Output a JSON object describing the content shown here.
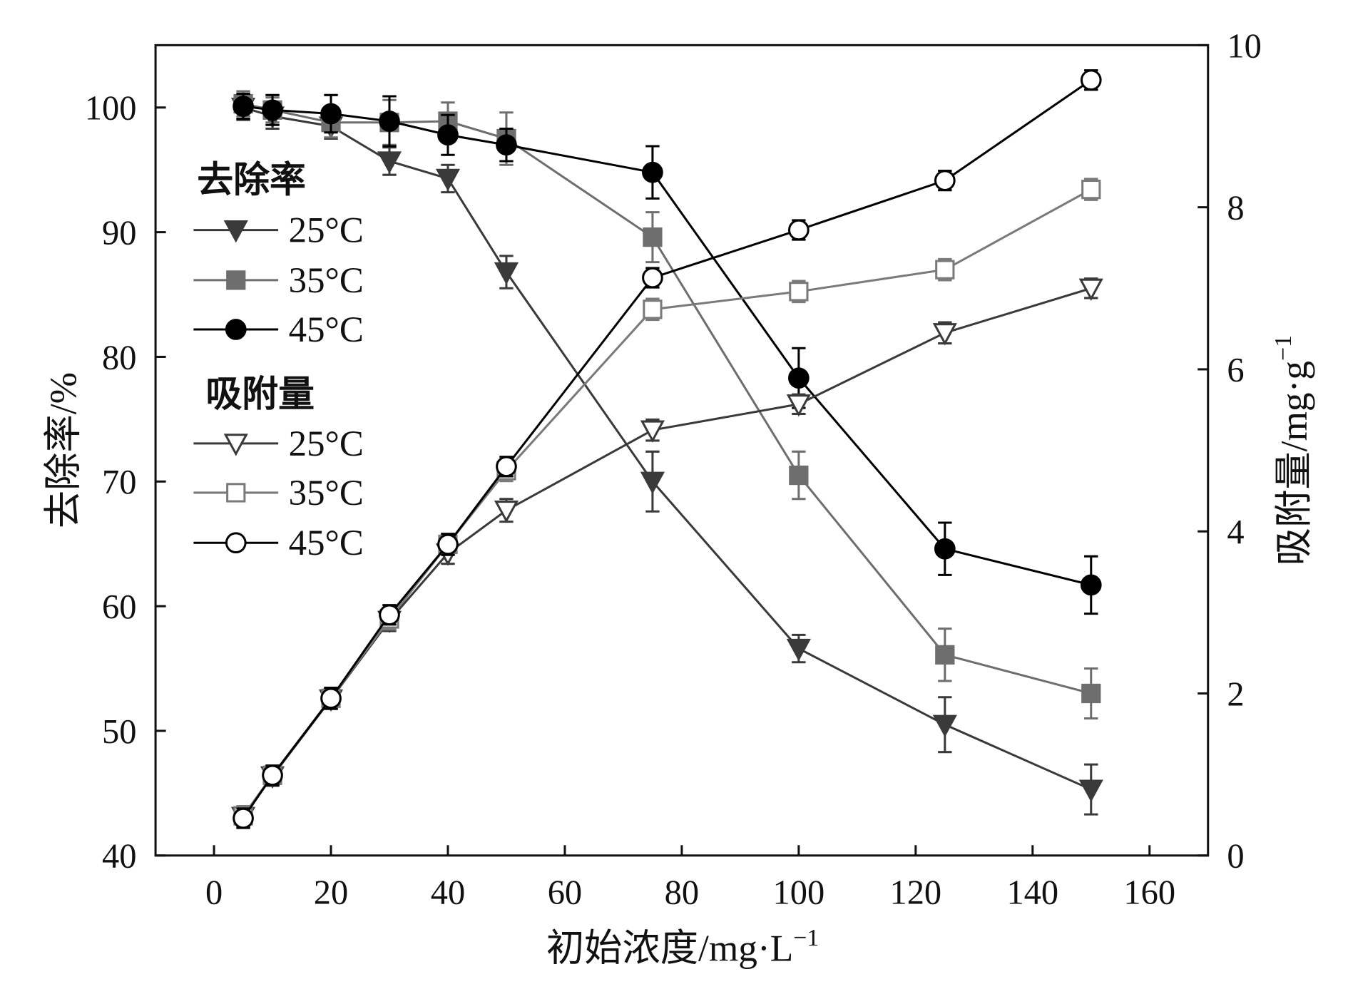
{
  "chart_data": {
    "type": "line",
    "xlabel": "初始浓度/mg·L",
    "xlabel_sup": "−1",
    "ylabel_left": "去除率/%",
    "ylabel_right": "吸附量/mg·g",
    "ylabel_right_sup": "−1",
    "xlim": [
      -10,
      170
    ],
    "ylim_left": [
      40,
      105
    ],
    "ylim_right": [
      0,
      10
    ],
    "xticks": [
      "0",
      "20",
      "40",
      "60",
      "80",
      "100",
      "120",
      "140",
      "160"
    ],
    "yticks_left": [
      "40",
      "50",
      "60",
      "70",
      "80",
      "90",
      "100"
    ],
    "yticks_right": [
      "0",
      "2",
      "4",
      "6",
      "8",
      "10"
    ],
    "x": [
      5,
      10,
      20,
      30,
      40,
      50,
      75,
      100,
      125,
      150
    ],
    "legend": {
      "group1_title": "去除率",
      "group2_title": "吸附量",
      "placement": "upper-left"
    },
    "series": [
      {
        "name": "25°C",
        "group": "去除率",
        "axis": "left",
        "marker": "triangle-down-filled",
        "color": "#3a3a3a",
        "values": [
          100.0,
          99.3,
          98.5,
          95.7,
          94.3,
          86.8,
          70.0,
          56.6,
          50.5,
          45.3
        ],
        "errors": [
          1.0,
          1.0,
          1.0,
          1.1,
          1.1,
          1.3,
          2.4,
          1.1,
          2.2,
          2.0
        ]
      },
      {
        "name": "35°C",
        "group": "去除率",
        "axis": "left",
        "marker": "square-filled",
        "color": "#6e6e6e",
        "values": [
          100.3,
          99.8,
          98.8,
          98.8,
          98.9,
          97.5,
          89.6,
          70.5,
          56.1,
          53.0
        ],
        "errors": [
          1.0,
          1.0,
          1.2,
          1.8,
          1.5,
          2.1,
          2.0,
          1.9,
          2.1,
          2.0
        ]
      },
      {
        "name": "45°C",
        "group": "去除率",
        "axis": "left",
        "marker": "circle-filled",
        "color": "#000000",
        "values": [
          100.1,
          99.8,
          99.5,
          98.9,
          97.8,
          97.0,
          94.8,
          78.3,
          64.6,
          61.7
        ],
        "errors": [
          1.0,
          1.2,
          1.5,
          2.0,
          1.6,
          1.3,
          2.1,
          2.4,
          2.1,
          2.3
        ]
      },
      {
        "name": "25°C",
        "group": "吸附量",
        "axis": "right",
        "marker": "triangle-down-open",
        "color": "#3a3a3a",
        "values": [
          0.48,
          0.98,
          1.93,
          2.9,
          3.73,
          4.26,
          5.25,
          5.57,
          6.45,
          7.0
        ],
        "errors": [
          0.12,
          0.12,
          0.12,
          0.13,
          0.13,
          0.14,
          0.13,
          0.12,
          0.13,
          0.12
        ]
      },
      {
        "name": "35°C",
        "group": "吸附量",
        "axis": "right",
        "marker": "square-open",
        "color": "#7a7a7a",
        "values": [
          0.49,
          0.99,
          1.94,
          2.92,
          3.84,
          4.75,
          6.74,
          6.96,
          7.23,
          8.22
        ],
        "errors": [
          0.12,
          0.12,
          0.12,
          0.13,
          0.12,
          0.13,
          0.13,
          0.13,
          0.13,
          0.13
        ]
      },
      {
        "name": "45°C",
        "group": "吸附量",
        "axis": "right",
        "marker": "circle-open",
        "color": "#000000",
        "values": [
          0.46,
          0.99,
          1.94,
          2.97,
          3.84,
          4.8,
          7.13,
          7.72,
          8.33,
          9.57
        ],
        "errors": [
          0.12,
          0.12,
          0.13,
          0.12,
          0.13,
          0.12,
          0.12,
          0.12,
          0.12,
          0.12
        ]
      }
    ]
  }
}
